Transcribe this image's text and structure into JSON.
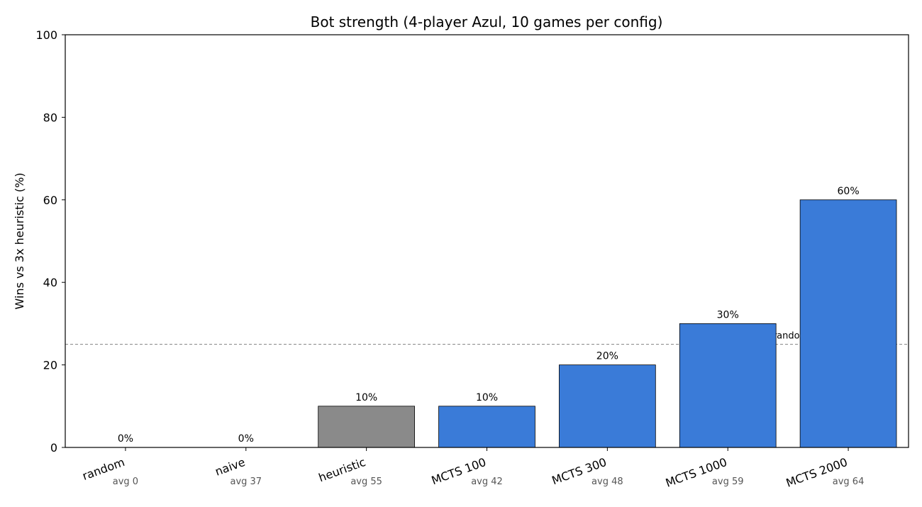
{
  "chart_data": {
    "type": "bar",
    "title": "Bot strength (4-player Azul, 10 games per config)",
    "xlabel": "",
    "ylabel": "Wins vs 3x heuristic (%)",
    "ylim": [
      0,
      100
    ],
    "yticks": [
      0,
      20,
      40,
      60,
      80,
      100
    ],
    "categories": [
      "random",
      "naive",
      "heuristic",
      "MCTS 100",
      "MCTS 300",
      "MCTS 1000",
      "MCTS 2000"
    ],
    "values": [
      0,
      0,
      10,
      10,
      20,
      30,
      60
    ],
    "value_labels": [
      "0%",
      "0%",
      "10%",
      "10%",
      "20%",
      "30%",
      "60%"
    ],
    "avg_labels": [
      "avg 0",
      "avg 37",
      "avg 55",
      "avg 42",
      "avg 48",
      "avg 59",
      "avg 64"
    ],
    "bar_colors": [
      "#8a8a8a",
      "#8a8a8a",
      "#8a8a8a",
      "#3a7bd8",
      "#3a7bd8",
      "#3a7bd8",
      "#3a7bd8"
    ],
    "baseline": {
      "value": 25,
      "label": "random baseline (25%)",
      "color": "#888888"
    },
    "grid": false,
    "legend": "none"
  }
}
